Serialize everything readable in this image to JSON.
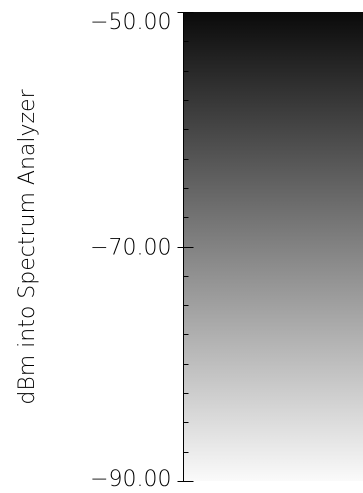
{
  "chart_data": {
    "type": "heatmap",
    "ylabel": "dBm into Spectrum Analyzer",
    "ylim": [
      -90,
      -50
    ],
    "major_ticks": [
      -90,
      -70,
      -50
    ],
    "major_tick_labels": [
      "−90.00",
      "−70.00",
      "−50.00"
    ],
    "minor_tick_step": 2.5,
    "colormap": {
      "low_color": "#fafafa",
      "high_color": "#0a0a0a",
      "direction": "darker at higher values"
    }
  }
}
